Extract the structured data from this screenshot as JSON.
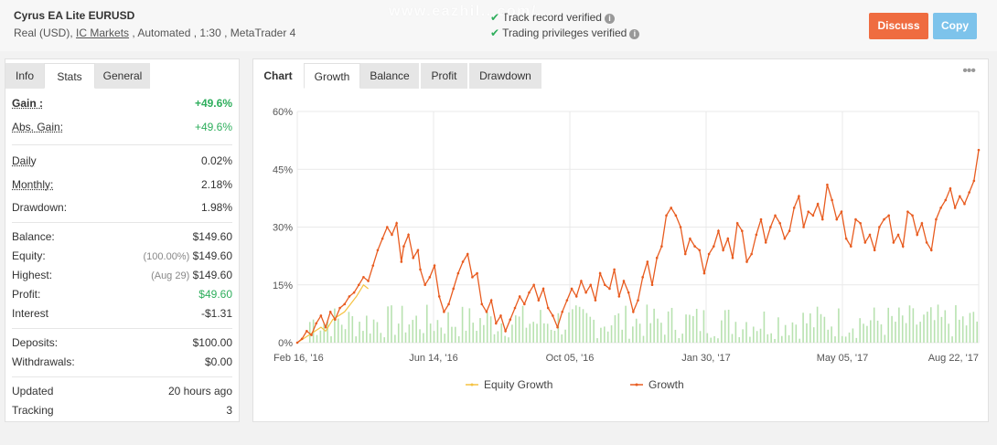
{
  "header": {
    "account_name": "Cyrus EA Lite EURUSD",
    "account_type": "Real (USD), ",
    "broker": "IC Markets",
    "account_details": " , Automated , 1:30 , MetaTrader 4",
    "verify_track": "Track record verified",
    "verify_privileges": "Trading privileges verified",
    "watermark": "www.eazhil...com/...",
    "discuss_label": "Discuss",
    "copy_label": "Copy",
    "colors": {
      "discuss": "#ef6c40",
      "copy": "#7dc3eb",
      "verified": "#2eae5c"
    }
  },
  "left_tabs": [
    "Info",
    "Stats",
    "General"
  ],
  "stats": {
    "gain": {
      "label": "Gain :",
      "value": "+49.6%"
    },
    "abs_gain": {
      "label": "Abs. Gain:",
      "value": "+49.6%"
    },
    "daily": {
      "label": "Daily",
      "value": "0.02%"
    },
    "monthly": {
      "label": "Monthly:",
      "value": "2.18%"
    },
    "drawdown": {
      "label": "Drawdown:",
      "value": "1.98%"
    },
    "balance": {
      "label": "Balance:",
      "value": "$149.60"
    },
    "equity": {
      "label": "Equity:",
      "sub": "(100.00%)",
      "value": "$149.60"
    },
    "highest": {
      "label": "Highest:",
      "sub": "(Aug 29)",
      "value": "$149.60"
    },
    "profit": {
      "label": "Profit:",
      "value": "$49.60"
    },
    "interest": {
      "label": "Interest",
      "value": "-$1.31"
    },
    "deposits": {
      "label": "Deposits:",
      "value": "$100.00"
    },
    "withdrawals": {
      "label": "Withdrawals:",
      "value": "$0.00"
    },
    "updated": {
      "label": "Updated",
      "value": "20 hours ago"
    },
    "tracking": {
      "label": "Tracking",
      "value": "3"
    }
  },
  "right_tabs": [
    "Chart",
    "Growth",
    "Balance",
    "Profit",
    "Drawdown"
  ],
  "chart_data": {
    "type": "line",
    "title": "",
    "xlabel": "",
    "ylabel": "",
    "ylim": [
      0,
      60
    ],
    "y_ticks": [
      "0%",
      "15%",
      "30%",
      "45%",
      "60%"
    ],
    "x_ticks": [
      "Feb 16, '16",
      "Jun 14, '16",
      "Oct 05, '16",
      "Jan 30, '17",
      "May 05, '17",
      "Aug 22, '17"
    ],
    "grid": true,
    "legend_position": "bottom",
    "series": [
      {
        "name": "Equity Growth",
        "color": "#f5c242",
        "x": [
          0,
          10,
          20,
          24,
          30,
          40,
          50,
          56,
          60
        ],
        "values": [
          0,
          2,
          4,
          3,
          6,
          8,
          12,
          15,
          14
        ]
      },
      {
        "name": "Growth",
        "color": "#e85c20",
        "x": [
          0,
          4,
          8,
          12,
          16,
          20,
          24,
          28,
          32,
          36,
          40,
          44,
          48,
          52,
          56,
          60,
          64,
          68,
          72,
          76,
          80,
          84,
          88,
          90,
          94,
          98,
          102,
          104,
          108,
          112,
          116,
          120,
          124,
          128,
          132,
          136,
          140,
          144,
          148,
          152,
          156,
          160,
          164,
          168,
          172,
          176,
          180,
          184,
          188,
          192,
          196,
          200,
          204,
          208,
          212,
          216,
          220,
          224,
          228,
          232,
          236,
          240,
          244,
          248,
          252,
          256,
          260,
          264,
          268,
          272,
          276,
          280,
          284,
          288,
          292,
          296,
          300,
          304,
          308,
          312,
          316,
          320,
          324,
          328,
          332,
          336,
          340,
          344,
          348,
          352,
          356,
          360,
          364,
          368,
          372,
          376,
          380,
          384,
          388,
          392,
          396,
          400,
          404,
          408,
          412,
          416,
          420,
          424,
          428,
          432,
          436,
          440,
          444,
          448,
          452,
          456,
          460,
          464,
          468,
          472,
          476,
          480,
          484,
          488,
          492,
          496,
          500,
          504,
          508,
          512,
          516,
          520,
          524,
          528,
          532,
          536,
          540,
          544,
          548,
          552,
          556,
          560,
          564,
          568,
          572,
          576
        ],
        "values": [
          0,
          1,
          3,
          2,
          5,
          7,
          4,
          8,
          6,
          9,
          10,
          12,
          13,
          15,
          17,
          16,
          20,
          24,
          27,
          30,
          28,
          31,
          21,
          25,
          28,
          22,
          24,
          19,
          15,
          17,
          20,
          12,
          8,
          10,
          14,
          18,
          21,
          23,
          17,
          18,
          10,
          8,
          11,
          5,
          7,
          3,
          6,
          9,
          12,
          10,
          13,
          15,
          11,
          14,
          9,
          7,
          4,
          8,
          11,
          14,
          12,
          16,
          13,
          15,
          11,
          18,
          15,
          14,
          19,
          12,
          16,
          13,
          8,
          11,
          17,
          21,
          15,
          22,
          25,
          33,
          35,
          33,
          30,
          23,
          27,
          25,
          24,
          18,
          23,
          25,
          29,
          24,
          27,
          22,
          31,
          29,
          21,
          23,
          28,
          32,
          26,
          30,
          33,
          31,
          27,
          29,
          35,
          38,
          30,
          34,
          33,
          36,
          32,
          41,
          37,
          32,
          34,
          27,
          25,
          32,
          31,
          26,
          28,
          24,
          30,
          32,
          33,
          26,
          28,
          25,
          34,
          33,
          28,
          31,
          26,
          24,
          32,
          35,
          37,
          40,
          35,
          38,
          36,
          39,
          42,
          50
        ]
      }
    ],
    "volume_bars_color": "#b8e2b0"
  }
}
